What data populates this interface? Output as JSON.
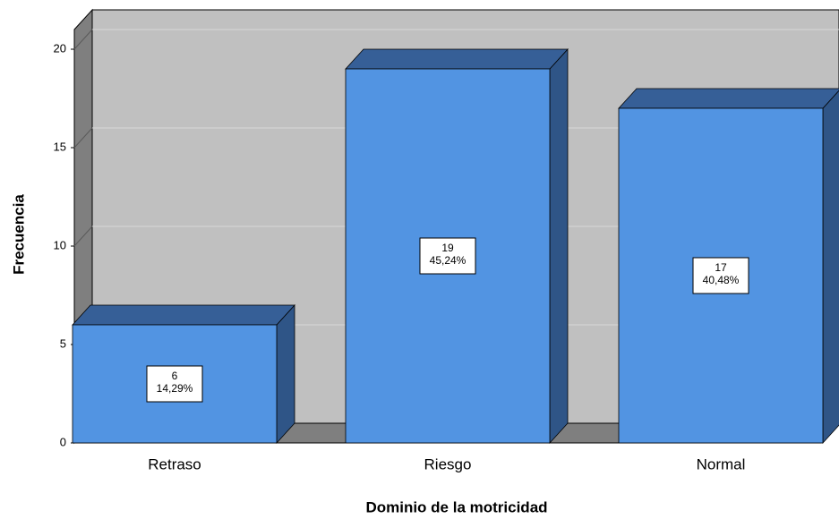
{
  "chart_data": {
    "type": "bar3d",
    "xlabel": "Dominio de la motricidad",
    "ylabel": "Frecuencia",
    "categories": [
      "Retraso",
      "Riesgo",
      "Normal"
    ],
    "values": [
      6,
      19,
      17
    ],
    "percentages": [
      14.29,
      45.24,
      40.48
    ],
    "percentage_labels": [
      "14,29%",
      "45,24%",
      "40,48%"
    ],
    "color": "#5294e2",
    "ylim": [
      0,
      21
    ],
    "yticks": [
      0,
      5,
      10,
      15,
      20
    ],
    "grid": true
  }
}
